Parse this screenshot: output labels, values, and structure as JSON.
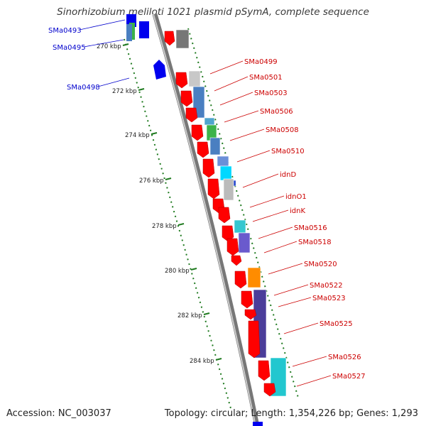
{
  "title": "Sinorhizobium meliloti 1021 plasmid pSymA, complete sequence",
  "footer": {
    "accession": "Accession: NC_003037",
    "topology": "Topology: circular; Length: 1,354,226 bp; Genes: 1,293"
  },
  "colors": {
    "forward_cds": "#ff0000",
    "reverse_cds": "#0000ff",
    "backbone": "#808080",
    "tick_dots": "#1f7a1f",
    "forward_label": "#cc0000",
    "reverse_label": "#0000cc"
  },
  "ruler_ticks": [
    "270 kbp",
    "272 kbp",
    "274 kbp",
    "276 kbp",
    "278 kbp",
    "280 kbp",
    "282 kbp",
    "284 kbp"
  ],
  "reverse_labels": [
    "SMa0493",
    "SMa0495",
    "SMa0498"
  ],
  "forward_labels": [
    "SMa0499",
    "SMa0501",
    "SMa0503",
    "SMa0506",
    "SMa0508",
    "SMa0510",
    "idnD",
    "idnO1",
    "idnK",
    "SMa0516",
    "SMa0518",
    "SMa0520",
    "SMa0522",
    "SMa0523",
    "SMa0525",
    "SMa0526",
    "SMa0527"
  ]
}
